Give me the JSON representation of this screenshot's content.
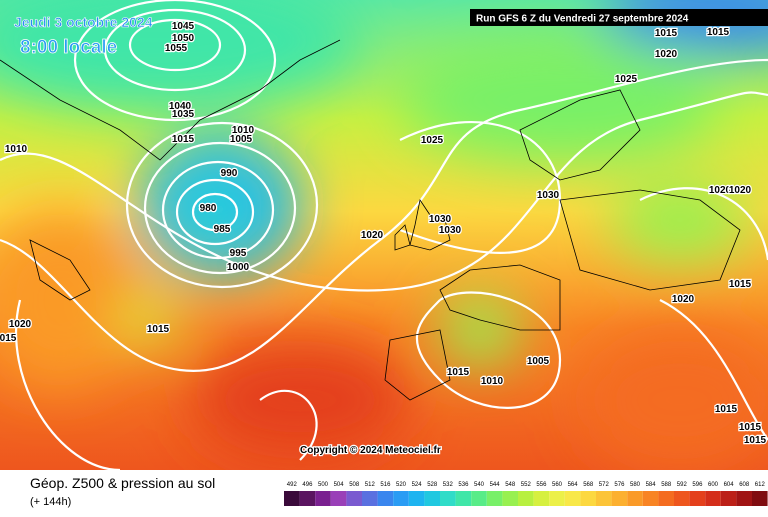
{
  "header": {
    "date": "Jeudi 3 octobre 2024",
    "time": "8:00 locale",
    "run": "Run GFS 6 Z du Vendredi 27 septembre 2024"
  },
  "map": {
    "isobar_labels": [
      "1045",
      "1050",
      "1055",
      "1040",
      "1035",
      "1015",
      "1010",
      "1005",
      "1010",
      "990",
      "980",
      "985",
      "995",
      "1000",
      "1020",
      "1025",
      "1030",
      "1030",
      "1030",
      "1015",
      "1015",
      "1020",
      "1025",
      "1020",
      "1020",
      "1020",
      "1015",
      "1015",
      "1020",
      "015",
      "1005",
      "1015",
      "1010",
      "1015",
      "1015",
      "1015"
    ],
    "copyright": "Copyright © 2024 Meteociel.fr"
  },
  "legend": {
    "title": "Géop. Z500 & pression au sol",
    "lead": "(+ 144h)",
    "values": [
      492,
      496,
      500,
      504,
      508,
      512,
      516,
      520,
      524,
      528,
      532,
      536,
      540,
      544,
      548,
      552,
      556,
      560,
      564,
      568,
      572,
      576,
      580,
      584,
      588,
      592,
      596,
      600,
      604,
      608,
      612
    ],
    "colors": [
      "#3a0a3a",
      "#5a1460",
      "#7a2090",
      "#9a40b8",
      "#7a5ad0",
      "#5a70e0",
      "#3a86ee",
      "#2a9cf4",
      "#1eb4f0",
      "#20c8e0",
      "#30dcc8",
      "#40e6a8",
      "#58ec88",
      "#78f068",
      "#98f050",
      "#b8f040",
      "#d6f040",
      "#ecf048",
      "#f8e848",
      "#fcd840",
      "#fcc438",
      "#fcb030",
      "#fa9a28",
      "#f88424",
      "#f46c20",
      "#ee561e",
      "#e4401c",
      "#d42e1a",
      "#bc2018",
      "#a01414",
      "#800c10"
    ]
  }
}
